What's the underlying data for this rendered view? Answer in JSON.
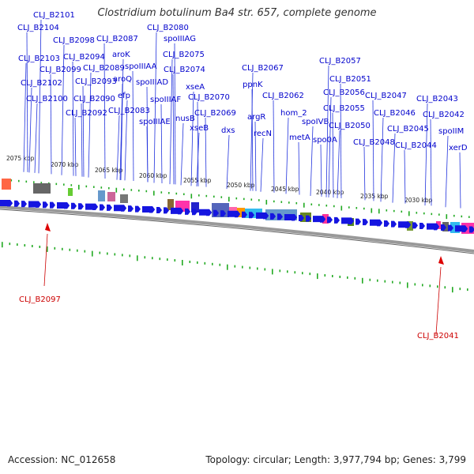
{
  "title": "Clostridium botulinum Ba4 str. 657, complete genome",
  "footer": {
    "accession": "Accession: NC_012658",
    "summary": "Topology: circular; Length: 3,977,794 bp; Genes: 3,799"
  },
  "colors": {
    "forward": "#1010dd",
    "reverse": "#cc0000",
    "backbone": "#888888",
    "tick": "#119911"
  },
  "ticks": [
    "2075 kbp",
    "2070 kbp",
    "2065 kbp",
    "2060 kbp",
    "2055 kbp",
    "2050 kbp",
    "2045 kbp",
    "2040 kbp",
    "2035 kbp",
    "2030 kbp"
  ],
  "upper_labels": [
    "CLJ_B2101",
    "CLJ_B2104",
    "CLJ_B2098",
    "CLJ_B2087",
    "CLJ_B2080",
    "spoIIIAG",
    "CLJ_B2103",
    "CLJ_B2094",
    "aroK",
    "spoIIIAA",
    "CLJ_B2075",
    "CLJ_B2099",
    "CLJ_B2089",
    "CLJ_B2074",
    "CLJ_B2102",
    "CLJ_B2093",
    "aroQ",
    "spoIIIAD",
    "xseA",
    "CLJ_B2070",
    "CLJ_B2100",
    "CLJ_B2090",
    "efp",
    "spoIIIAF",
    "nusB",
    "CLJ_B2092",
    "CLJ_B2083",
    "spoIIIAE",
    "xseB",
    "CLJ_B2069",
    "dxs",
    "ppnK",
    "CLJ_B2067",
    "argR",
    "recN",
    "CLJ_B2062",
    "hom_2",
    "metA",
    "spoIVB",
    "spo0A",
    "CLJ_B2057",
    "CLJ_B2051",
    "CLJ_B2056",
    "CLJ_B2055",
    "CLJ_B2050",
    "CLJ_B2047",
    "CLJ_B2046",
    "CLJ_B2048",
    "CLJ_B2045",
    "CLJ_B2044",
    "CLJ_B2043",
    "CLJ_B2042",
    "spoIIM",
    "xerD"
  ],
  "lower_labels": [
    "CLJ_B2097",
    "CLJ_B2041"
  ]
}
